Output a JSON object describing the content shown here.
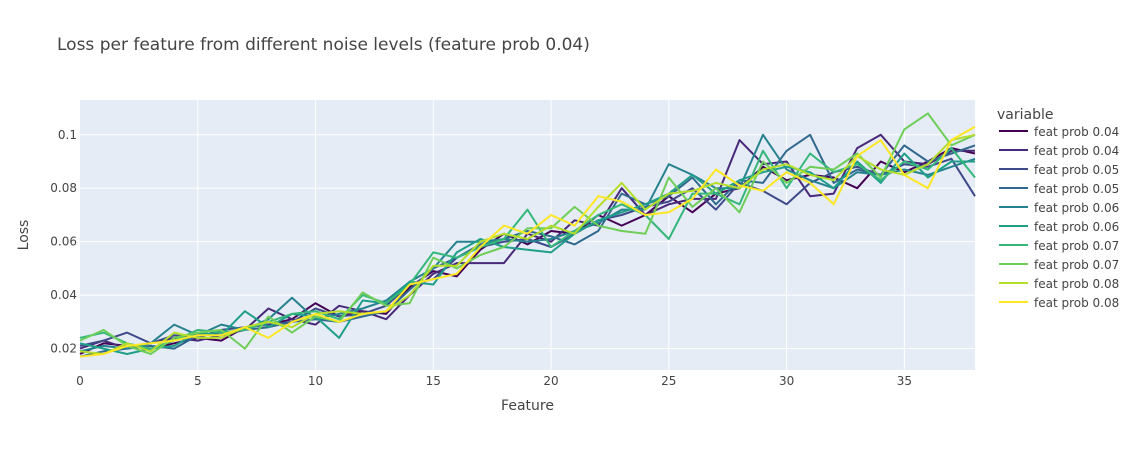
{
  "chart_data": {
    "type": "line",
    "title": "Loss per feature from different noise levels (feature prob 0.04)",
    "xlabel": "Feature",
    "ylabel": "Loss",
    "xlim": [
      0,
      38
    ],
    "ylim": [
      0.012,
      0.113
    ],
    "xticks": [
      0,
      5,
      10,
      15,
      20,
      25,
      30,
      35
    ],
    "yticks": [
      0.02,
      0.04,
      0.06,
      0.08,
      0.1
    ],
    "ytick_labels": [
      "0.02",
      "0.04",
      "0.06",
      "0.08",
      "0.1"
    ],
    "grid": true,
    "legend": {
      "title": "variable",
      "position": "right"
    },
    "x": [
      0,
      1,
      2,
      3,
      4,
      5,
      6,
      7,
      8,
      9,
      10,
      11,
      12,
      13,
      14,
      15,
      16,
      17,
      18,
      19,
      20,
      21,
      22,
      23,
      24,
      25,
      26,
      27,
      28,
      29,
      30,
      31,
      32,
      33,
      34,
      35,
      36,
      37,
      38
    ],
    "series": [
      {
        "name": "feat prob 0.04",
        "color": "#440154",
        "values": [
          0.018,
          0.022,
          0.021,
          0.02,
          0.022,
          0.024,
          0.023,
          0.028,
          0.029,
          0.031,
          0.037,
          0.032,
          0.034,
          0.033,
          0.043,
          0.049,
          0.047,
          0.057,
          0.063,
          0.059,
          0.064,
          0.063,
          0.07,
          0.066,
          0.07,
          0.077,
          0.071,
          0.078,
          0.08,
          0.088,
          0.083,
          0.085,
          0.084,
          0.08,
          0.09,
          0.086,
          0.09,
          0.095,
          0.093
        ]
      },
      {
        "name": "feat prob 0.04",
        "color": "#482878",
        "values": [
          0.02,
          0.023,
          0.02,
          0.022,
          0.024,
          0.023,
          0.025,
          0.027,
          0.035,
          0.031,
          0.029,
          0.036,
          0.034,
          0.031,
          0.04,
          0.048,
          0.052,
          0.052,
          0.052,
          0.063,
          0.06,
          0.068,
          0.066,
          0.08,
          0.07,
          0.074,
          0.076,
          0.076,
          0.098,
          0.089,
          0.09,
          0.077,
          0.078,
          0.095,
          0.1,
          0.09,
          0.089,
          0.094,
          0.094
        ]
      },
      {
        "name": "feat prob 0.05",
        "color": "#3E4A89",
        "values": [
          0.021,
          0.023,
          0.026,
          0.022,
          0.025,
          0.024,
          0.027,
          0.028,
          0.029,
          0.03,
          0.035,
          0.032,
          0.033,
          0.036,
          0.044,
          0.046,
          0.054,
          0.058,
          0.06,
          0.061,
          0.058,
          0.063,
          0.068,
          0.07,
          0.073,
          0.075,
          0.08,
          0.072,
          0.082,
          0.079,
          0.074,
          0.082,
          0.086,
          0.088,
          0.085,
          0.089,
          0.088,
          0.091,
          0.077
        ]
      },
      {
        "name": "feat prob 0.05",
        "color": "#31688E",
        "values": [
          0.017,
          0.019,
          0.02,
          0.021,
          0.02,
          0.025,
          0.026,
          0.027,
          0.028,
          0.03,
          0.031,
          0.03,
          0.032,
          0.034,
          0.042,
          0.05,
          0.054,
          0.059,
          0.061,
          0.064,
          0.062,
          0.059,
          0.064,
          0.078,
          0.074,
          0.077,
          0.084,
          0.074,
          0.083,
          0.082,
          0.094,
          0.1,
          0.082,
          0.087,
          0.085,
          0.096,
          0.09,
          0.093,
          0.096
        ]
      },
      {
        "name": "feat prob 0.06",
        "color": "#26828E",
        "values": [
          0.019,
          0.021,
          0.02,
          0.022,
          0.029,
          0.025,
          0.029,
          0.027,
          0.031,
          0.039,
          0.031,
          0.033,
          0.035,
          0.038,
          0.045,
          0.05,
          0.06,
          0.06,
          0.061,
          0.06,
          0.061,
          0.064,
          0.067,
          0.072,
          0.072,
          0.089,
          0.085,
          0.08,
          0.08,
          0.1,
          0.087,
          0.083,
          0.08,
          0.086,
          0.085,
          0.087,
          0.085,
          0.088,
          0.091
        ]
      },
      {
        "name": "feat prob 0.06",
        "color": "#1F9E89",
        "values": [
          0.022,
          0.02,
          0.018,
          0.02,
          0.021,
          0.026,
          0.025,
          0.034,
          0.028,
          0.033,
          0.032,
          0.024,
          0.038,
          0.037,
          0.045,
          0.044,
          0.056,
          0.061,
          0.058,
          0.057,
          0.056,
          0.063,
          0.068,
          0.071,
          0.074,
          0.078,
          0.085,
          0.078,
          0.083,
          0.086,
          0.088,
          0.086,
          0.08,
          0.09,
          0.082,
          0.093,
          0.084,
          0.09,
          0.09
        ]
      },
      {
        "name": "feat prob 0.07",
        "color": "#35B779",
        "values": [
          0.024,
          0.026,
          0.022,
          0.02,
          0.023,
          0.027,
          0.026,
          0.027,
          0.03,
          0.033,
          0.034,
          0.031,
          0.04,
          0.037,
          0.044,
          0.056,
          0.054,
          0.058,
          0.061,
          0.072,
          0.058,
          0.064,
          0.07,
          0.074,
          0.07,
          0.061,
          0.078,
          0.078,
          0.074,
          0.094,
          0.08,
          0.093,
          0.086,
          0.089,
          0.083,
          0.09,
          0.087,
          0.095,
          0.084
        ]
      },
      {
        "name": "feat prob 0.07",
        "color": "#6ECE58",
        "values": [
          0.023,
          0.027,
          0.021,
          0.018,
          0.024,
          0.026,
          0.027,
          0.02,
          0.032,
          0.026,
          0.032,
          0.03,
          0.041,
          0.036,
          0.037,
          0.054,
          0.05,
          0.055,
          0.058,
          0.065,
          0.065,
          0.073,
          0.066,
          0.064,
          0.063,
          0.084,
          0.073,
          0.08,
          0.071,
          0.09,
          0.082,
          0.088,
          0.087,
          0.093,
          0.084,
          0.102,
          0.108,
          0.096,
          0.1
        ]
      },
      {
        "name": "feat prob 0.08",
        "color": "#B5DE2B",
        "values": [
          0.019,
          0.018,
          0.022,
          0.019,
          0.026,
          0.024,
          0.024,
          0.028,
          0.03,
          0.028,
          0.033,
          0.034,
          0.033,
          0.034,
          0.04,
          0.051,
          0.051,
          0.06,
          0.063,
          0.061,
          0.066,
          0.063,
          0.073,
          0.082,
          0.072,
          0.078,
          0.079,
          0.082,
          0.08,
          0.087,
          0.089,
          0.085,
          0.083,
          0.092,
          0.087,
          0.085,
          0.089,
          0.098,
          0.1
        ]
      },
      {
        "name": "feat prob 0.08",
        "color": "#FDE725",
        "values": [
          0.017,
          0.018,
          0.021,
          0.022,
          0.023,
          0.025,
          0.025,
          0.028,
          0.024,
          0.03,
          0.033,
          0.03,
          0.033,
          0.034,
          0.044,
          0.046,
          0.048,
          0.058,
          0.066,
          0.063,
          0.07,
          0.066,
          0.077,
          0.075,
          0.07,
          0.071,
          0.076,
          0.087,
          0.081,
          0.079,
          0.086,
          0.082,
          0.074,
          0.092,
          0.098,
          0.085,
          0.08,
          0.098,
          0.103
        ]
      }
    ]
  }
}
